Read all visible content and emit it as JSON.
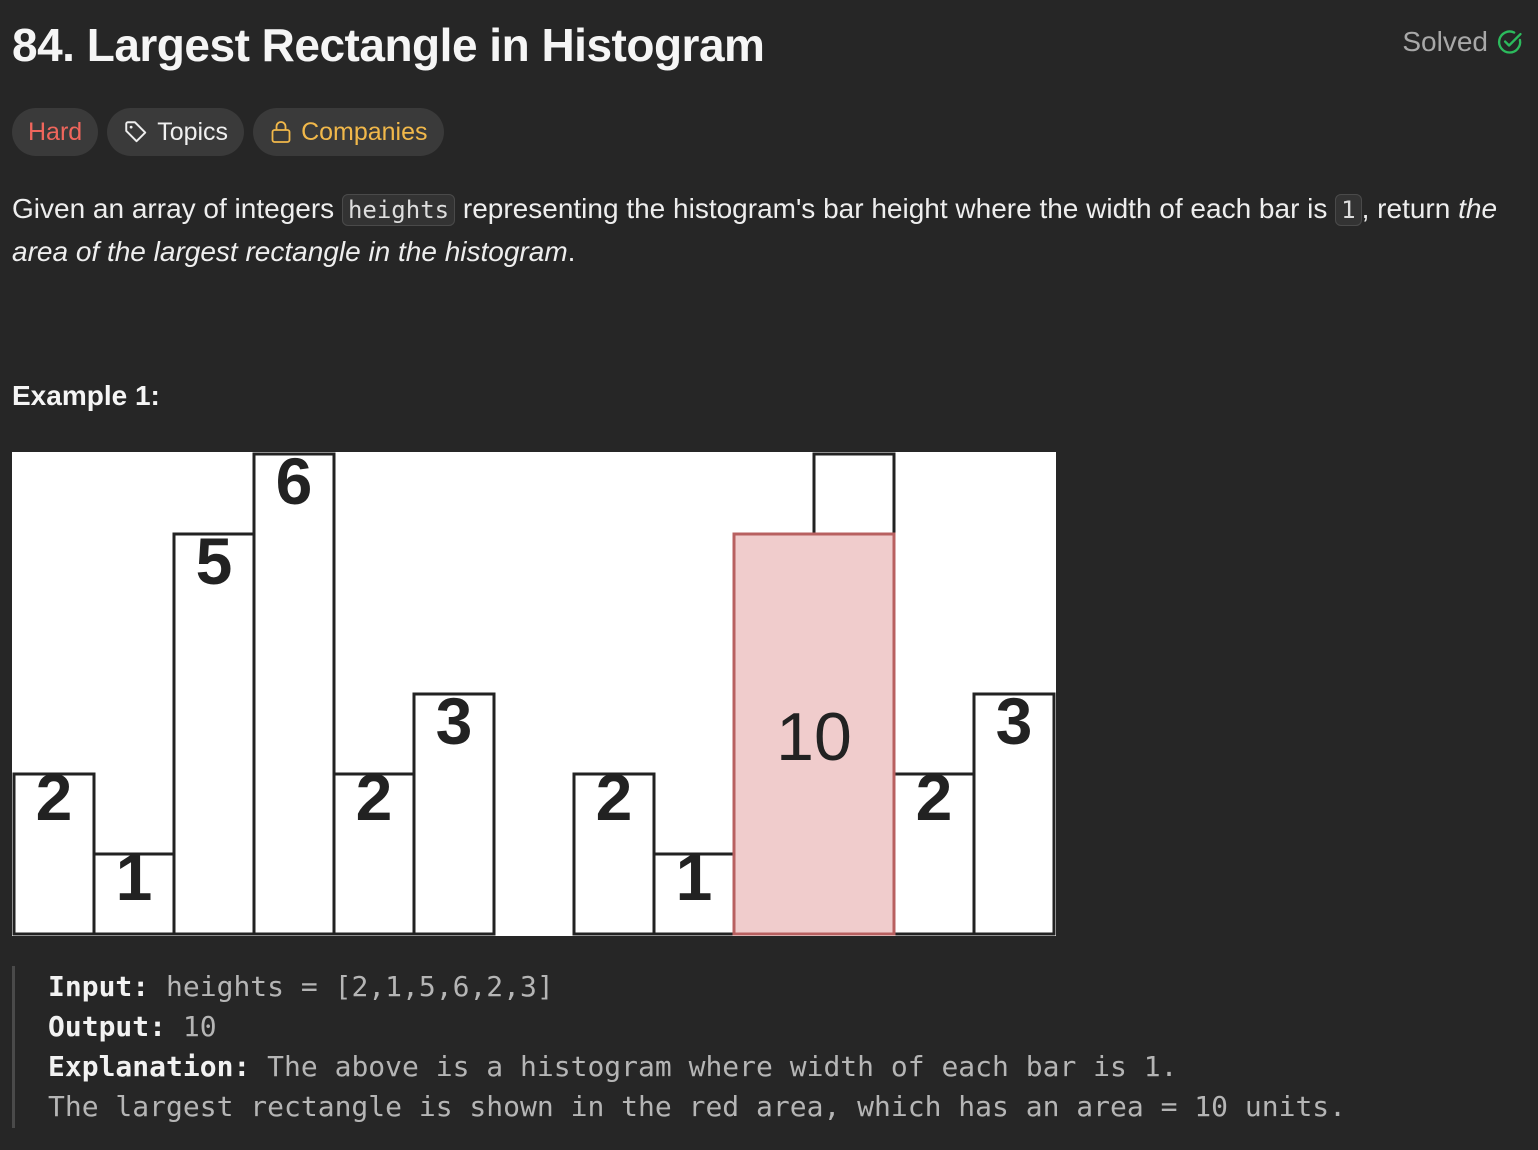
{
  "problem": {
    "title": "84. Largest Rectangle in Histogram",
    "status": "Solved",
    "colors": {
      "solved_check": "#2cbb5d",
      "hard": "#f0665c",
      "companies": "#f1b84a",
      "highlight_fill": "#f0cccc",
      "highlight_stroke": "#b86060"
    }
  },
  "tags": {
    "difficulty": "Hard",
    "topics": "Topics",
    "companies": "Companies"
  },
  "description": {
    "part1": "Given an array of integers ",
    "code1": "heights",
    "part2": " representing the histogram's bar height where the width of each bar is ",
    "code2": "1",
    "part3": ", return ",
    "emphasis": "the area of the largest rectangle in the histogram",
    "part4": "."
  },
  "example": {
    "title": "Example 1:",
    "input_label": "Input:",
    "input_value": " heights = [2,1,5,6,2,3]",
    "output_label": "Output:",
    "output_value": " 10",
    "explanation_label": "Explanation:",
    "explanation_line1": " The above is a histogram where width of each bar is 1.",
    "explanation_line2": "The largest rectangle is shown in the red area, which has an area = 10 units."
  },
  "histogram": {
    "heights": [
      2,
      1,
      5,
      6,
      2,
      3
    ],
    "bar_labels": [
      "2",
      "1",
      "5",
      "6",
      "2",
      "3"
    ],
    "highlight_bars": [
      2,
      3
    ],
    "highlight_height": 5,
    "highlight_label": "10"
  }
}
